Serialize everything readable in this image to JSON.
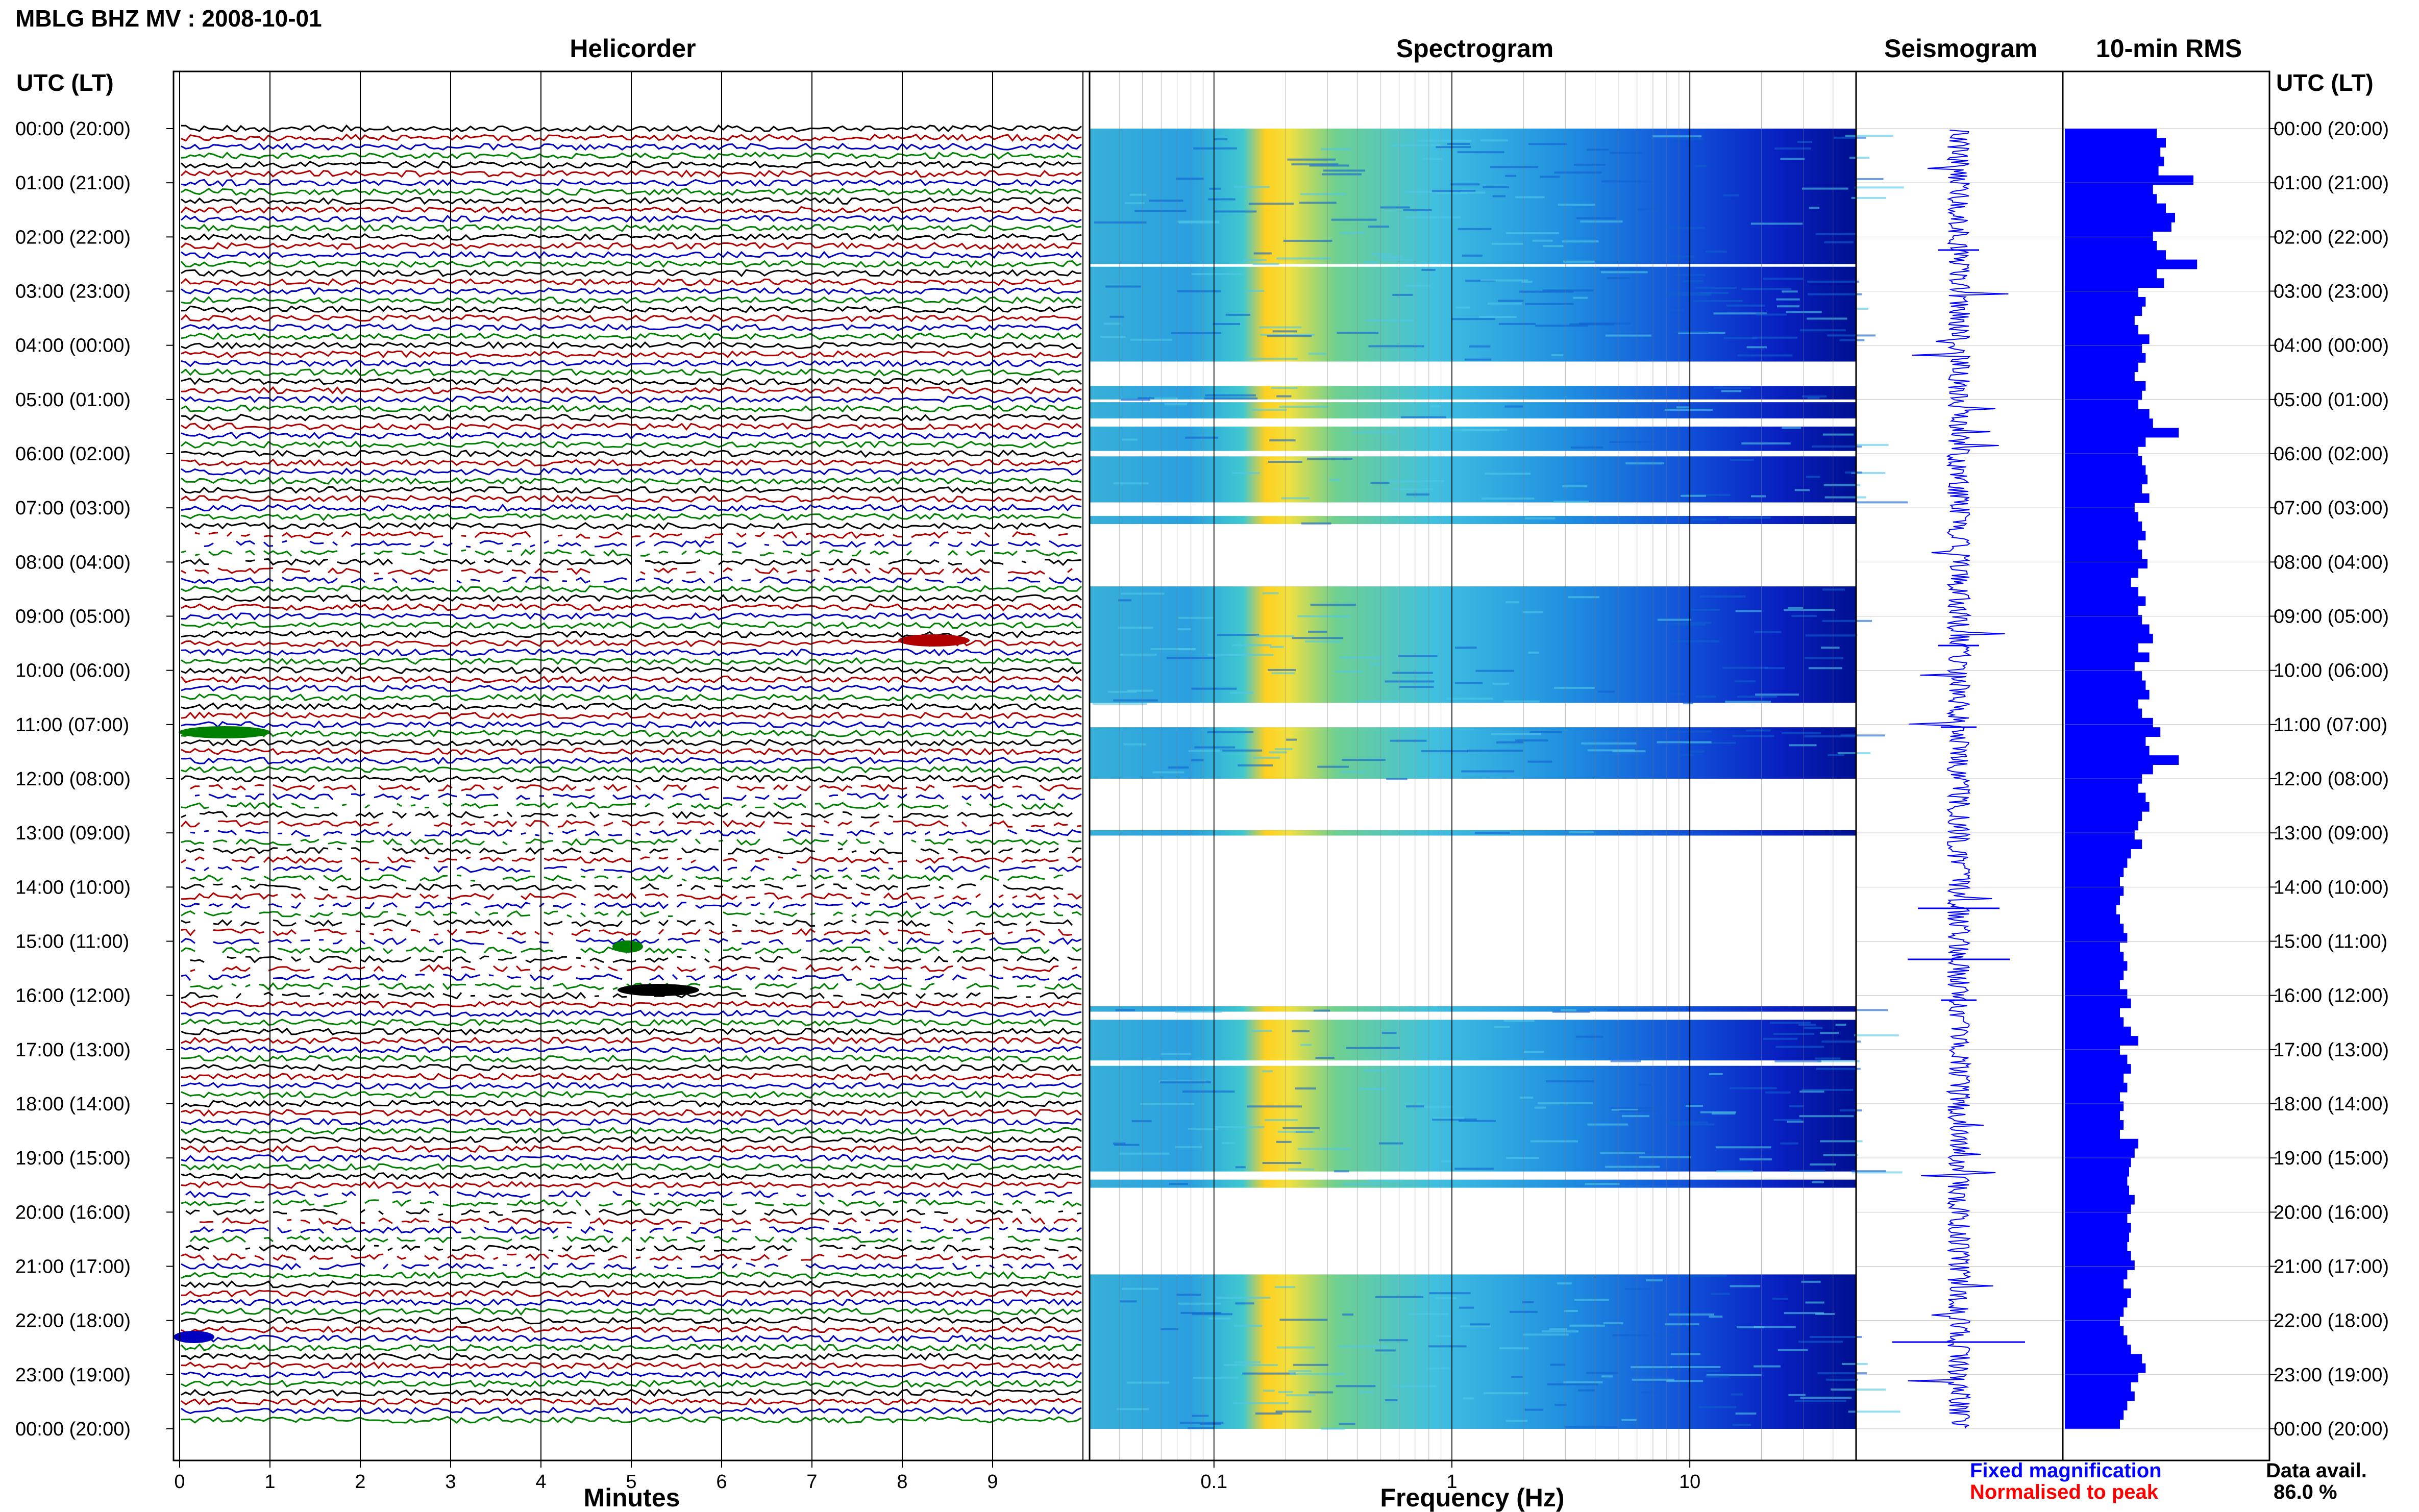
{
  "header": {
    "title": "MBLG BHZ MV : 2008-10-01",
    "utc_label_left": "UTC (LT)",
    "utc_label_right": "UTC (LT)"
  },
  "panels": {
    "helicorder": "Helicorder",
    "spectrogram": "Spectrogram",
    "seismogram": "Seismogram",
    "rms": "10-min RMS"
  },
  "axes": {
    "minutes_label": "Minutes",
    "frequency_label": "Frequency (Hz)"
  },
  "legend": {
    "fixed": "Fixed magnification",
    "normalised": "Normalised to peak",
    "fixed_color": "#0000ff",
    "normalised_color": "#ff0000"
  },
  "data_avail": {
    "label": "Data avail.",
    "value": "86.0 %"
  },
  "chart_data": {
    "type": "heatmap",
    "time_labels": [
      "00:00 (20:00)",
      "01:00 (21:00)",
      "02:00 (22:00)",
      "03:00 (23:00)",
      "04:00 (00:00)",
      "05:00 (01:00)",
      "06:00 (02:00)",
      "07:00 (03:00)",
      "08:00 (04:00)",
      "09:00 (05:00)",
      "10:00 (06:00)",
      "11:00 (07:00)",
      "12:00 (08:00)",
      "13:00 (09:00)",
      "14:00 (10:00)",
      "15:00 (11:00)",
      "16:00 (12:00)",
      "17:00 (13:00)",
      "18:00 (14:00)",
      "19:00 (15:00)",
      "20:00 (16:00)",
      "21:00 (17:00)",
      "22:00 (18:00)",
      "23:00 (19:00)",
      "00:00 (20:00)"
    ],
    "minute_ticks": [
      "0",
      "1",
      "2",
      "3",
      "4",
      "5",
      "6",
      "7",
      "8",
      "9"
    ],
    "freq_ticks": [
      "0.1",
      "1",
      "10"
    ],
    "freq_range": [
      0.03,
      50
    ],
    "trace_colors": [
      "#000000",
      "#b00000",
      "#0000c0",
      "#008000"
    ],
    "spectrogram_coverage_hours": [
      [
        0,
        2.5
      ],
      [
        2.55,
        4.3
      ],
      [
        4.75,
        5.0
      ],
      [
        5.05,
        5.35
      ],
      [
        5.5,
        5.95
      ],
      [
        6.05,
        6.9
      ],
      [
        7.15,
        7.3
      ],
      [
        8.45,
        10.6
      ],
      [
        11.05,
        12.0
      ],
      [
        12.95,
        13.05
      ],
      [
        16.2,
        16.3
      ],
      [
        16.45,
        17.2
      ],
      [
        17.3,
        19.25
      ],
      [
        19.4,
        19.55
      ],
      [
        21.15,
        24.0
      ]
    ],
    "rms_values": [
      0.5,
      0.55,
      0.52,
      0.54,
      0.51,
      0.7,
      0.48,
      0.5,
      0.55,
      0.6,
      0.58,
      0.48,
      0.5,
      0.55,
      0.72,
      0.5,
      0.54,
      0.4,
      0.44,
      0.42,
      0.38,
      0.4,
      0.46,
      0.42,
      0.44,
      0.4,
      0.38,
      0.44,
      0.42,
      0.4,
      0.46,
      0.48,
      0.62,
      0.44,
      0.4,
      0.42,
      0.44,
      0.45,
      0.42,
      0.46,
      0.38,
      0.4,
      0.42,
      0.44,
      0.4,
      0.42,
      0.45,
      0.4,
      0.36,
      0.4,
      0.44,
      0.4,
      0.42,
      0.46,
      0.48,
      0.4,
      0.46,
      0.38,
      0.42,
      0.44,
      0.46,
      0.4,
      0.42,
      0.48,
      0.52,
      0.44,
      0.46,
      0.62,
      0.48,
      0.42,
      0.4,
      0.44,
      0.46,
      0.42,
      0.4,
      0.38,
      0.42,
      0.36,
      0.34,
      0.32,
      0.3,
      0.32,
      0.3,
      0.28,
      0.3,
      0.32,
      0.34,
      0.3,
      0.32,
      0.34,
      0.32,
      0.3,
      0.34,
      0.36,
      0.3,
      0.32,
      0.36,
      0.4,
      0.3,
      0.34,
      0.36,
      0.32,
      0.34,
      0.3,
      0.32,
      0.3,
      0.32,
      0.3,
      0.4,
      0.38,
      0.36,
      0.35,
      0.34,
      0.35,
      0.38,
      0.36,
      0.34,
      0.36,
      0.35,
      0.34,
      0.36,
      0.38,
      0.34,
      0.32,
      0.36,
      0.34,
      0.32,
      0.3,
      0.32,
      0.34,
      0.36,
      0.42,
      0.44,
      0.4,
      0.36,
      0.38,
      0.34,
      0.32,
      0.3
    ]
  }
}
